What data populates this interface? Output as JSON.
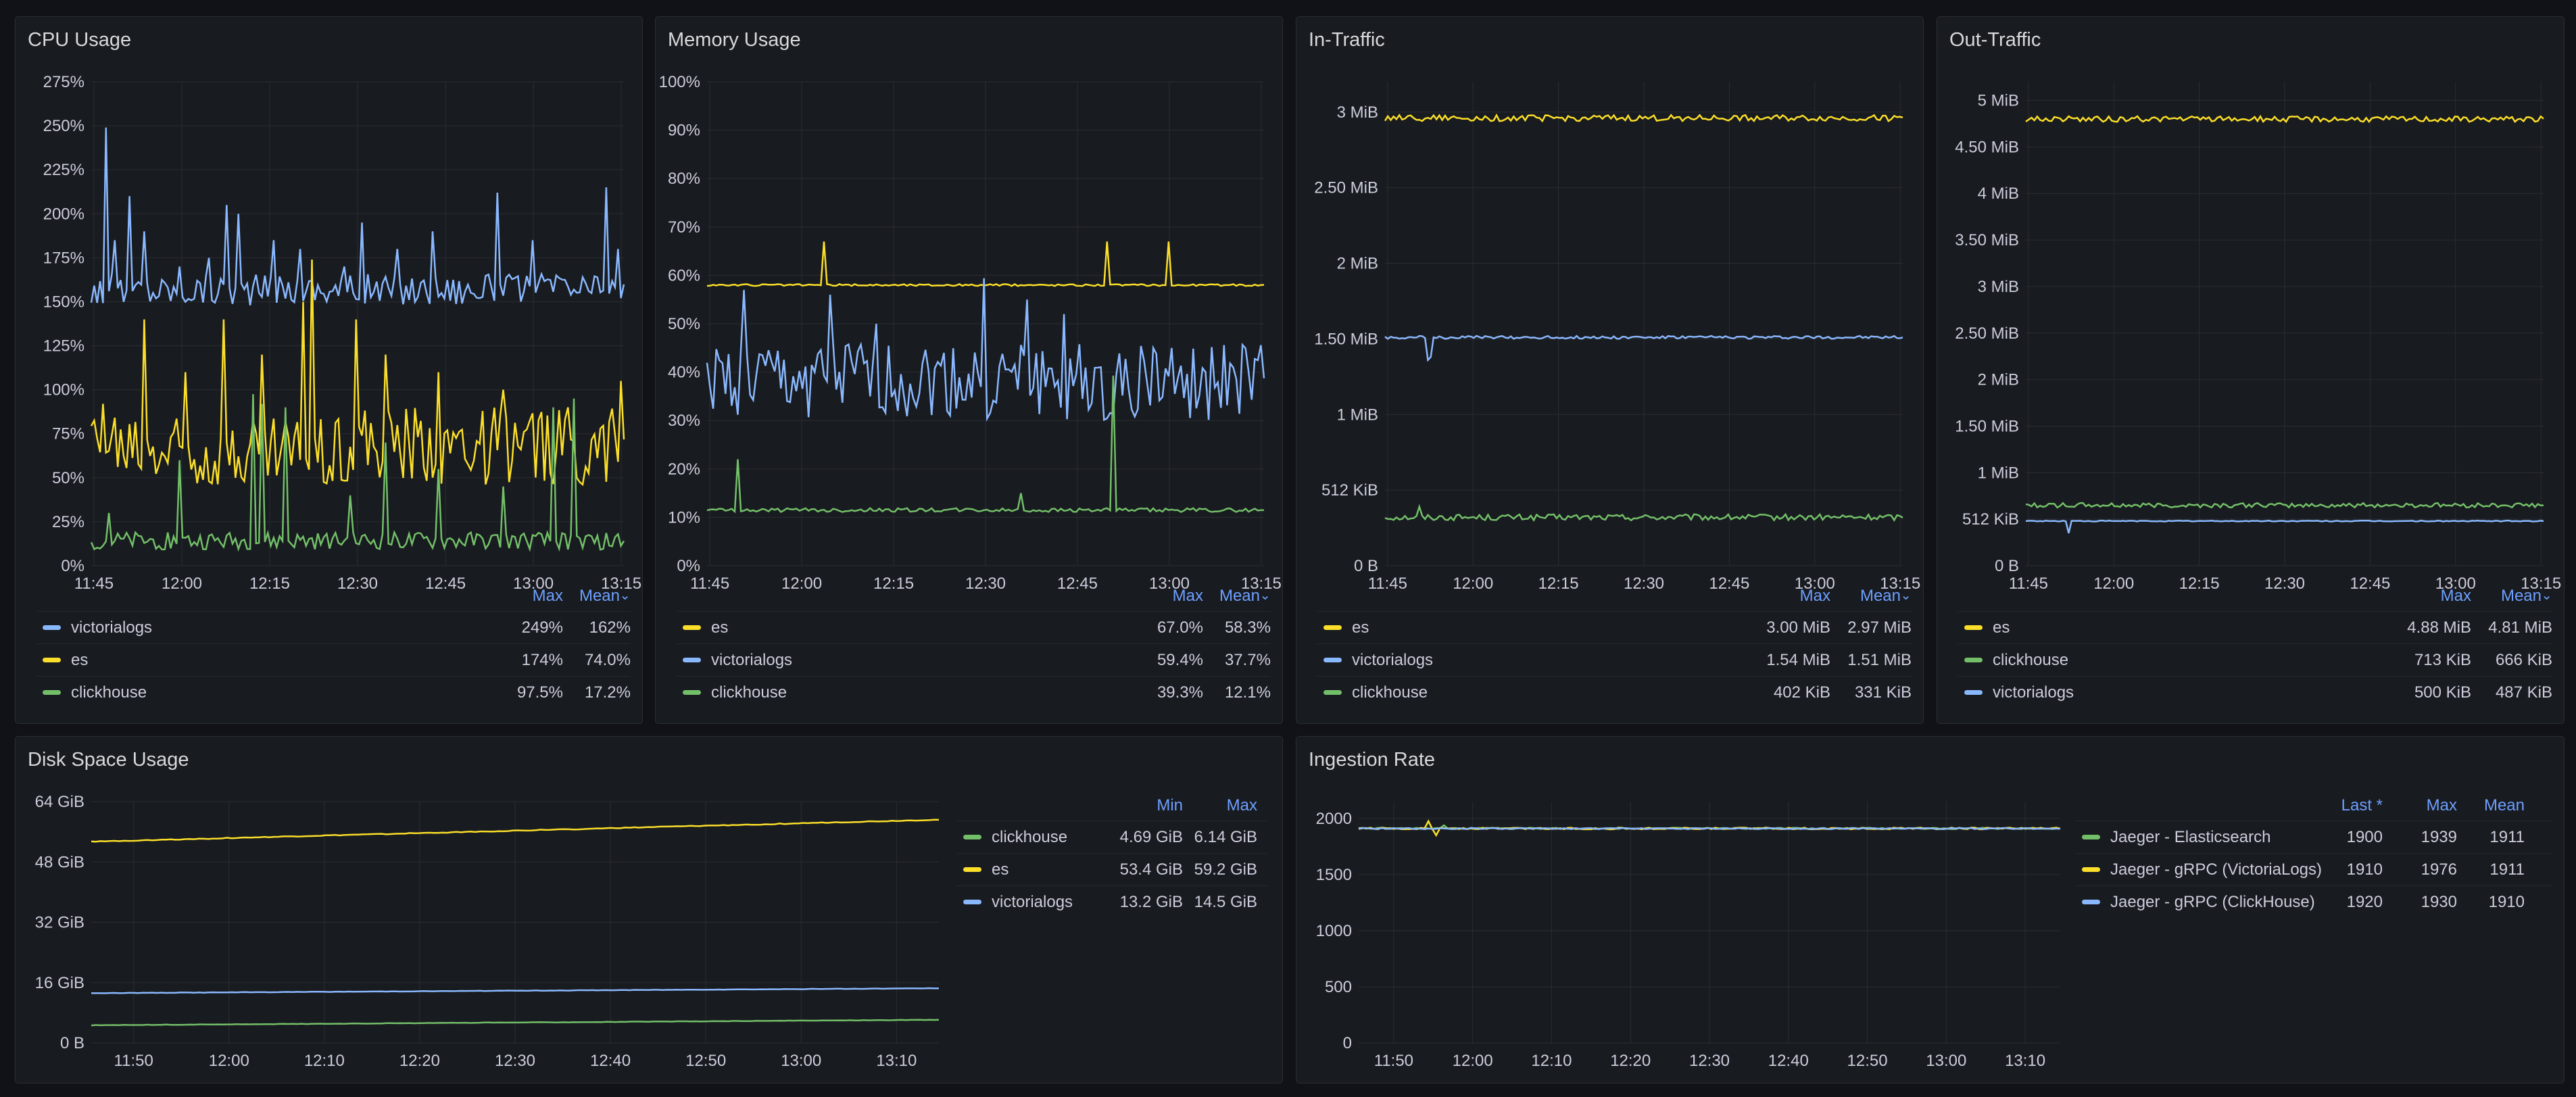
{
  "colors": {
    "green": "#73bf69",
    "yellow": "#fade2a",
    "blue": "#8ab8ff",
    "grid": "#2a2d33",
    "axis": "#ccccdc",
    "link": "#6e9fff"
  },
  "panels": {
    "cpu": {
      "title": "CPU Usage",
      "legend": {
        "headers": [
          "Max",
          "Mean"
        ],
        "sort_icon": "chevron-down-icon",
        "rows": [
          {
            "name": "victorialogs",
            "color": "blue",
            "values": [
              "249%",
              "162%"
            ]
          },
          {
            "name": "es",
            "color": "yellow",
            "values": [
              "174%",
              "74.0%"
            ]
          },
          {
            "name": "clickhouse",
            "color": "green",
            "values": [
              "97.5%",
              "17.2%"
            ]
          }
        ]
      }
    },
    "memory": {
      "title": "Memory Usage",
      "legend": {
        "headers": [
          "Max",
          "Mean"
        ],
        "sort_icon": "chevron-down-icon",
        "rows": [
          {
            "name": "es",
            "color": "yellow",
            "values": [
              "67.0%",
              "58.3%"
            ]
          },
          {
            "name": "victorialogs",
            "color": "blue",
            "values": [
              "59.4%",
              "37.7%"
            ]
          },
          {
            "name": "clickhouse",
            "color": "green",
            "values": [
              "39.3%",
              "12.1%"
            ]
          }
        ]
      }
    },
    "in_traffic": {
      "title": "In-Traffic",
      "legend": {
        "headers": [
          "Max",
          "Mean"
        ],
        "sort_icon": "chevron-down-icon",
        "rows": [
          {
            "name": "es",
            "color": "yellow",
            "values": [
              "3.00 MiB",
              "2.97 MiB"
            ]
          },
          {
            "name": "victorialogs",
            "color": "blue",
            "values": [
              "1.54 MiB",
              "1.51 MiB"
            ]
          },
          {
            "name": "clickhouse",
            "color": "green",
            "values": [
              "402 KiB",
              "331 KiB"
            ]
          }
        ]
      }
    },
    "out_traffic": {
      "title": "Out-Traffic",
      "legend": {
        "headers": [
          "Max",
          "Mean"
        ],
        "sort_icon": "chevron-down-icon",
        "rows": [
          {
            "name": "es",
            "color": "yellow",
            "values": [
              "4.88 MiB",
              "4.81 MiB"
            ]
          },
          {
            "name": "clickhouse",
            "color": "green",
            "values": [
              "713 KiB",
              "666 KiB"
            ]
          },
          {
            "name": "victorialogs",
            "color": "blue",
            "values": [
              "500 KiB",
              "487 KiB"
            ]
          }
        ]
      }
    },
    "disk": {
      "title": "Disk Space Usage",
      "legend": {
        "headers": [
          "Min",
          "Max"
        ],
        "rows": [
          {
            "name": "clickhouse",
            "color": "green",
            "values": [
              "4.69 GiB",
              "6.14 GiB"
            ]
          },
          {
            "name": "es",
            "color": "yellow",
            "values": [
              "53.4 GiB",
              "59.2 GiB"
            ]
          },
          {
            "name": "victorialogs",
            "color": "blue",
            "values": [
              "13.2 GiB",
              "14.5 GiB"
            ]
          }
        ]
      }
    },
    "ingestion": {
      "title": "Ingestion Rate",
      "legend": {
        "headers": [
          "Last *",
          "Max",
          "Mean"
        ],
        "rows": [
          {
            "name": "Jaeger - Elasticsearch",
            "color": "green",
            "values": [
              "1900",
              "1939",
              "1911"
            ]
          },
          {
            "name": "Jaeger - gRPC (VictoriaLogs)",
            "color": "yellow",
            "values": [
              "1910",
              "1976",
              "1911"
            ]
          },
          {
            "name": "Jaeger - gRPC (ClickHouse)",
            "color": "blue",
            "values": [
              "1920",
              "1930",
              "1910"
            ]
          }
        ]
      }
    }
  },
  "chart_data": [
    {
      "id": "cpu",
      "type": "line",
      "title": "CPU Usage",
      "x_ticks": [
        "11:45",
        "12:00",
        "12:15",
        "12:30",
        "12:45",
        "13:00",
        "13:15"
      ],
      "y_ticks": [
        "0%",
        "25%",
        "50%",
        "75%",
        "100%",
        "125%",
        "150%",
        "175%",
        "200%",
        "225%",
        "250%",
        "275%"
      ],
      "ylim": [
        0,
        275
      ],
      "series": [
        {
          "name": "victorialogs",
          "color": "blue",
          "base": 157,
          "noise": 9,
          "spikes": [
            [
              5,
              249
            ],
            [
              8,
              185
            ],
            [
              13,
              210
            ],
            [
              18,
              190
            ],
            [
              30,
              170
            ],
            [
              40,
              175
            ],
            [
              46,
              205
            ],
            [
              50,
              200
            ],
            [
              62,
              185
            ],
            [
              71,
              180
            ],
            [
              86,
              170
            ],
            [
              92,
              195
            ],
            [
              104,
              180
            ],
            [
              116,
              190
            ],
            [
              138,
              212
            ],
            [
              150,
              185
            ],
            [
              158,
              165
            ],
            [
              175,
              215
            ],
            [
              179,
              180
            ]
          ]
        },
        {
          "name": "es",
          "color": "yellow",
          "base": 68,
          "noise": 22,
          "spikes": [
            [
              4,
              92
            ],
            [
              18,
              140
            ],
            [
              32,
              110
            ],
            [
              45,
              140
            ],
            [
              58,
              120
            ],
            [
              72,
              150
            ],
            [
              75,
              174
            ],
            [
              90,
              140
            ],
            [
              100,
              120
            ],
            [
              118,
              110
            ],
            [
              140,
              100
            ],
            [
              162,
              90
            ],
            [
              173,
              78
            ],
            [
              180,
              105
            ]
          ]
        },
        {
          "name": "clickhouse",
          "color": "green",
          "base": 14,
          "noise": 5,
          "spikes": [
            [
              6,
              30
            ],
            [
              30,
              60
            ],
            [
              55,
              97.5
            ],
            [
              58,
              92
            ],
            [
              66,
              90
            ],
            [
              88,
              40
            ],
            [
              100,
              70
            ],
            [
              118,
              55
            ],
            [
              140,
              45
            ],
            [
              157,
              90
            ],
            [
              164,
              95
            ]
          ]
        }
      ]
    },
    {
      "id": "memory",
      "type": "line",
      "title": "Memory Usage",
      "x_ticks": [
        "11:45",
        "12:00",
        "12:15",
        "12:30",
        "12:45",
        "13:00",
        "13:15"
      ],
      "y_ticks": [
        "0%",
        "10%",
        "20%",
        "30%",
        "40%",
        "50%",
        "60%",
        "70%",
        "80%",
        "90%",
        "100%"
      ],
      "ylim": [
        0,
        100
      ],
      "series": [
        {
          "name": "es",
          "color": "yellow",
          "base": 58,
          "noise": 0.2,
          "spikes": [
            [
              38,
              67
            ],
            [
              130,
              67
            ],
            [
              150,
              67
            ]
          ]
        },
        {
          "name": "victorialogs",
          "color": "blue",
          "base": 38,
          "noise": 8,
          "spikes": [
            [
              12,
              57
            ],
            [
              40,
              56
            ],
            [
              55,
              50
            ],
            [
              90,
              59.4
            ],
            [
              104,
              55
            ],
            [
              116,
              52
            ],
            [
              145,
              45
            ]
          ]
        },
        {
          "name": "clickhouse",
          "color": "green",
          "base": 11.5,
          "noise": 0.4,
          "spikes": [
            [
              10,
              22
            ],
            [
              102,
              15
            ],
            [
              132,
              39.3
            ]
          ]
        }
      ]
    },
    {
      "id": "in_traffic",
      "type": "line",
      "title": "In-Traffic",
      "x_ticks": [
        "11:45",
        "12:00",
        "12:15",
        "12:30",
        "12:45",
        "13:00",
        "13:15"
      ],
      "y_ticks": [
        "0 B",
        "512 KiB",
        "1 MiB",
        "1.50 MiB",
        "2 MiB",
        "2.50 MiB",
        "3 MiB"
      ],
      "y_tick_values": [
        0,
        0.5,
        1,
        1.5,
        2,
        2.5,
        3
      ],
      "ylim": [
        0,
        3.2
      ],
      "series": [
        {
          "name": "es",
          "color": "yellow",
          "base": 2.96,
          "noise": 0.02,
          "spikes": []
        },
        {
          "name": "victorialogs",
          "color": "blue",
          "base": 1.51,
          "noise": 0.01,
          "spikes": [
            [
              15,
              1.36
            ],
            [
              16,
              1.38
            ]
          ]
        },
        {
          "name": "clickhouse",
          "color": "green",
          "base": 0.32,
          "noise": 0.02,
          "spikes": [
            [
              12,
              0.39
            ]
          ]
        }
      ]
    },
    {
      "id": "out_traffic",
      "type": "line",
      "title": "Out-Traffic",
      "x_ticks": [
        "11:45",
        "12:00",
        "12:15",
        "12:30",
        "12:45",
        "13:00",
        "13:15"
      ],
      "y_ticks": [
        "0 B",
        "512 KiB",
        "1 MiB",
        "1.50 MiB",
        "2 MiB",
        "2.50 MiB",
        "3 MiB",
        "3.50 MiB",
        "4 MiB",
        "4.50 MiB",
        "5 MiB"
      ],
      "y_tick_values": [
        0,
        0.5,
        1,
        1.5,
        2,
        2.5,
        3,
        3.5,
        4,
        4.5,
        5
      ],
      "ylim": [
        0,
        5.2
      ],
      "series": [
        {
          "name": "es",
          "color": "yellow",
          "base": 4.8,
          "noise": 0.03,
          "spikes": []
        },
        {
          "name": "clickhouse",
          "color": "green",
          "base": 0.65,
          "noise": 0.025,
          "spikes": []
        },
        {
          "name": "victorialogs",
          "color": "blue",
          "base": 0.48,
          "noise": 0.005,
          "spikes": [
            [
              15,
              0.35
            ]
          ]
        }
      ]
    },
    {
      "id": "disk",
      "type": "line",
      "title": "Disk Space Usage",
      "x_ticks": [
        "11:50",
        "12:00",
        "12:10",
        "12:20",
        "12:30",
        "12:40",
        "12:50",
        "13:00",
        "13:10"
      ],
      "y_ticks": [
        "0 B",
        "16 GiB",
        "32 GiB",
        "48 GiB",
        "64 GiB"
      ],
      "y_tick_values": [
        0,
        16,
        32,
        48,
        64
      ],
      "ylim": [
        0,
        64
      ],
      "series": [
        {
          "name": "clickhouse",
          "color": "green",
          "start": 4.69,
          "end": 6.14,
          "noise": 0.05,
          "spikes": []
        },
        {
          "name": "es",
          "color": "yellow",
          "start": 53.4,
          "end": 59.2,
          "noise": 0.1,
          "spikes": []
        },
        {
          "name": "victorialogs",
          "color": "blue",
          "start": 13.2,
          "end": 14.5,
          "noise": 0.05,
          "spikes": []
        }
      ]
    },
    {
      "id": "ingestion",
      "type": "line",
      "title": "Ingestion Rate",
      "x_ticks": [
        "11:50",
        "12:00",
        "12:10",
        "12:20",
        "12:30",
        "12:40",
        "12:50",
        "13:00",
        "13:10"
      ],
      "y_ticks": [
        "0",
        "500",
        "1000",
        "1500",
        "2000"
      ],
      "y_tick_values": [
        0,
        500,
        1000,
        1500,
        2000
      ],
      "ylim": [
        0,
        2150
      ],
      "series": [
        {
          "name": "Jaeger - Elasticsearch",
          "color": "green",
          "base": 1911,
          "noise": 6,
          "spikes": [
            [
              22,
              1939
            ]
          ]
        },
        {
          "name": "Jaeger - gRPC (VictoriaLogs)",
          "color": "yellow",
          "base": 1911,
          "noise": 8,
          "spikes": [
            [
              18,
              1976
            ],
            [
              20,
              1850
            ]
          ]
        },
        {
          "name": "Jaeger - gRPC (ClickHouse)",
          "color": "blue",
          "base": 1910,
          "noise": 5,
          "spikes": []
        }
      ]
    }
  ]
}
